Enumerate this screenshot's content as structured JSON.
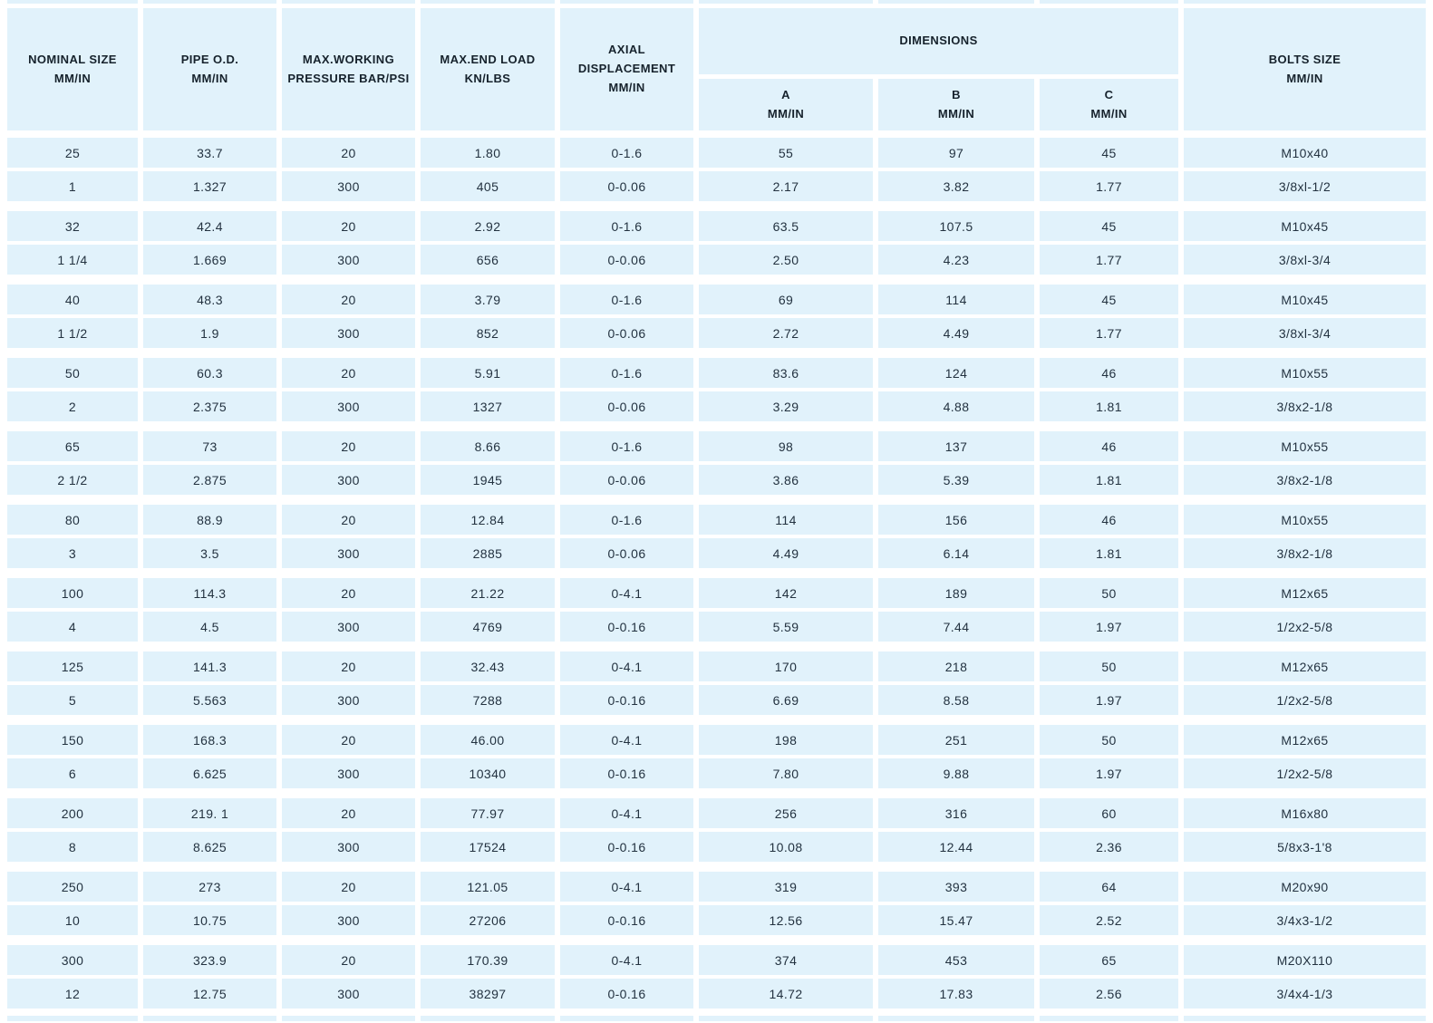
{
  "colors": {
    "cell_background": "#E1F2FB",
    "page_background": "#FFFFFF",
    "data_text": "#233240",
    "header_text": "#16222C"
  },
  "table": {
    "header": {
      "columns": [
        "NOMINAL SIZE\nMM/IN",
        "PIPE O.D.\nMM/IN",
        "MAX.WORKING\nPRESSURE BAR/PSI",
        "MAX.END LOAD\nKN/LBS",
        "AXIAL\nDISPLACEMENT\nMM/IN"
      ],
      "dimensions_group": {
        "label": "DIMENSIONS",
        "sub_columns": [
          "A\nMM/IN",
          "B\nMM/IN",
          "C\nMM/IN"
        ]
      },
      "bolts_column": "BOLTS SIZE\nMM/IN"
    },
    "groups": [
      {
        "mm": [
          "25",
          "33.7",
          "20",
          "1.80",
          "0-1.6",
          "55",
          "97",
          "45",
          "M10x40"
        ],
        "in": [
          "1",
          "1.327",
          "300",
          "405",
          "0-0.06",
          "2.17",
          "3.82",
          "1.77",
          "3/8xl-1/2"
        ]
      },
      {
        "mm": [
          "32",
          "42.4",
          "20",
          "2.92",
          "0-1.6",
          "63.5",
          "107.5",
          "45",
          "M10x45"
        ],
        "in": [
          "1 1/4",
          "1.669",
          "300",
          "656",
          "0-0.06",
          "2.50",
          "4.23",
          "1.77",
          "3/8xl-3/4"
        ]
      },
      {
        "mm": [
          "40",
          "48.3",
          "20",
          "3.79",
          "0-1.6",
          "69",
          "114",
          "45",
          "M10x45"
        ],
        "in": [
          "1 1/2",
          "1.9",
          "300",
          "852",
          "0-0.06",
          "2.72",
          "4.49",
          "1.77",
          "3/8xl-3/4"
        ]
      },
      {
        "mm": [
          "50",
          "60.3",
          "20",
          "5.91",
          "0-1.6",
          "83.6",
          "124",
          "46",
          "M10x55"
        ],
        "in": [
          "2",
          "2.375",
          "300",
          "1327",
          "0-0.06",
          "3.29",
          "4.88",
          "1.81",
          "3/8x2-1/8"
        ]
      },
      {
        "mm": [
          "65",
          "73",
          "20",
          "8.66",
          "0-1.6",
          "98",
          "137",
          "46",
          "M10x55"
        ],
        "in": [
          "2 1/2",
          "2.875",
          "300",
          "1945",
          "0-0.06",
          "3.86",
          "5.39",
          "1.81",
          "3/8x2-1/8"
        ]
      },
      {
        "mm": [
          "80",
          "88.9",
          "20",
          "12.84",
          "0-1.6",
          "114",
          "156",
          "46",
          "M10x55"
        ],
        "in": [
          "3",
          "3.5",
          "300",
          "2885",
          "0-0.06",
          "4.49",
          "6.14",
          "1.81",
          "3/8x2-1/8"
        ]
      },
      {
        "mm": [
          "100",
          "114.3",
          "20",
          "21.22",
          "0-4.1",
          "142",
          "189",
          "50",
          "M12x65"
        ],
        "in": [
          "4",
          "4.5",
          "300",
          "4769",
          "0-0.16",
          "5.59",
          "7.44",
          "1.97",
          "1/2x2-5/8"
        ]
      },
      {
        "mm": [
          "125",
          "141.3",
          "20",
          "32.43",
          "0-4.1",
          "170",
          "218",
          "50",
          "M12x65"
        ],
        "in": [
          "5",
          "5.563",
          "300",
          "7288",
          "0-0.16",
          "6.69",
          "8.58",
          "1.97",
          "1/2x2-5/8"
        ]
      },
      {
        "mm": [
          "150",
          "168.3",
          "20",
          "46.00",
          "0-4.1",
          "198",
          "251",
          "50",
          "M12x65"
        ],
        "in": [
          "6",
          "6.625",
          "300",
          "10340",
          "0-0.16",
          "7.80",
          "9.88",
          "1.97",
          "1/2x2-5/8"
        ]
      },
      {
        "mm": [
          "200",
          "219. 1",
          "20",
          "77.97",
          "0-4.1",
          "256",
          "316",
          "60",
          "M16x80"
        ],
        "in": [
          "8",
          "8.625",
          "300",
          "17524",
          "0-0.16",
          "10.08",
          "12.44",
          "2.36",
          "5/8x3-1'8"
        ]
      },
      {
        "mm": [
          "250",
          "273",
          "20",
          "121.05",
          "0-4.1",
          "319",
          "393",
          "64",
          "M20x90"
        ],
        "in": [
          "10",
          "10.75",
          "300",
          "27206",
          "0-0.16",
          "12.56",
          "15.47",
          "2.52",
          "3/4x3-1/2"
        ]
      },
      {
        "mm": [
          "300",
          "323.9",
          "20",
          "170.39",
          "0-4.1",
          "374",
          "453",
          "65",
          "M20X110"
        ],
        "in": [
          "12",
          "12.75",
          "300",
          "38297",
          "0-0.16",
          "14.72",
          "17.83",
          "2.56",
          "3/4x4-1/3"
        ]
      }
    ]
  }
}
